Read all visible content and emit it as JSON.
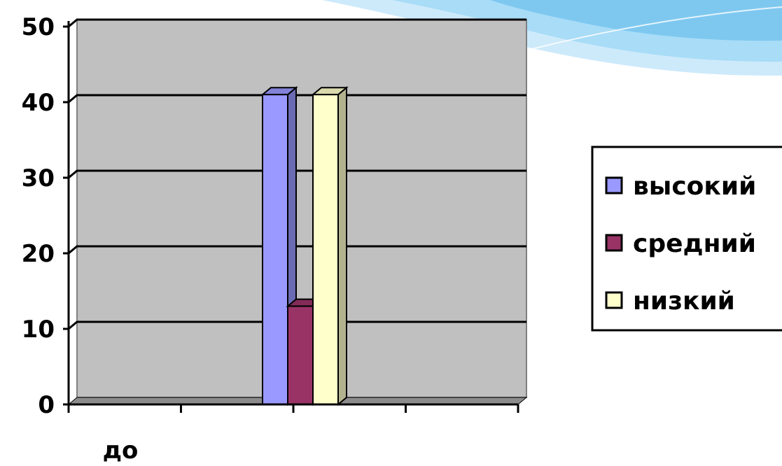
{
  "chart_data": {
    "type": "bar",
    "view": "3d-clustered-column",
    "categories": [
      "",
      "",
      "до",
      "",
      ""
    ],
    "series": [
      {
        "name": "высокий",
        "values": [
          0,
          0,
          41,
          0,
          0
        ],
        "color": "#9999ff"
      },
      {
        "name": "средний",
        "values": [
          0,
          0,
          13,
          0,
          0
        ],
        "color": "#993366"
      },
      {
        "name": "низкий",
        "values": [
          0,
          0,
          41,
          0,
          0
        ],
        "color": "#ffffcc"
      }
    ],
    "title": "",
    "xlabel": "",
    "ylabel": "",
    "ylim": [
      0,
      50
    ],
    "yticks": [
      "0",
      "10",
      "20",
      "30",
      "40",
      "50"
    ],
    "grid": true,
    "legend": "right",
    "colors": {
      "plot_background": "#c0c0c0",
      "grid": "#000000",
      "decoration": "#7ec8f0"
    }
  }
}
